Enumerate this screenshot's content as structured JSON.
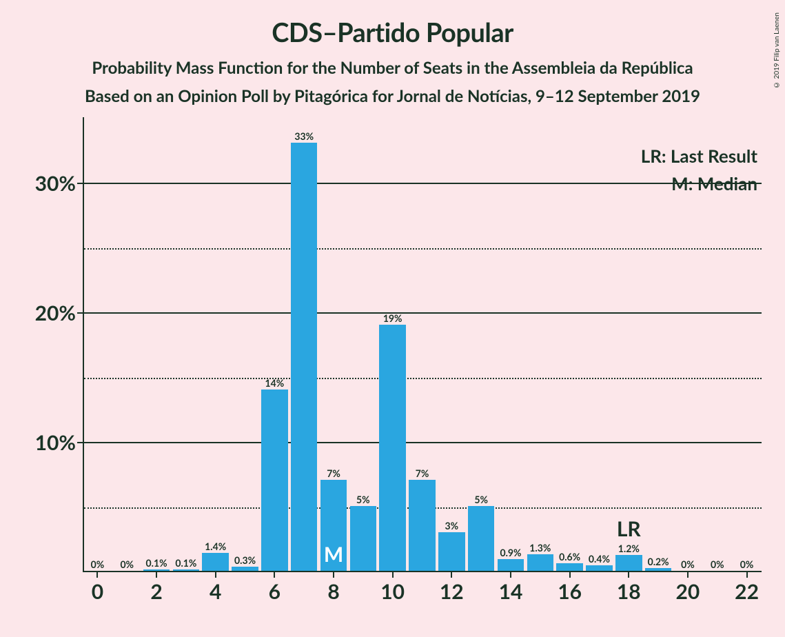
{
  "title": "CDS–Partido Popular",
  "subtitle": "Probability Mass Function for the Number of Seats in the Assembleia da República",
  "subtitle2": "Based on an Opinion Poll by Pitagórica for Jornal de Notícias, 9–12 September 2019",
  "copyright": "© 2019 Filip van Laenen",
  "legend": {
    "lr": "LR: Last Result",
    "m": "M: Median"
  },
  "chart": {
    "type": "bar",
    "background_color": "#fce7ea",
    "bar_color": "#2aa6e0",
    "axis_color": "#1a3326",
    "text_color": "#1a3326",
    "marker_m_color": "#ffffff",
    "bar_width_ratio": 0.9,
    "x_min": -0.5,
    "x_max": 22.5,
    "y_min": 0,
    "y_max": 33.5,
    "y_ticks_major": [
      0,
      10,
      20,
      30
    ],
    "y_ticks_minor": [
      5,
      15,
      25
    ],
    "y_tick_labels": [
      "10%",
      "20%",
      "30%"
    ],
    "y_tick_label_values": [
      10,
      20,
      30
    ],
    "x_ticks": [
      0,
      2,
      4,
      6,
      8,
      10,
      12,
      14,
      16,
      18,
      20,
      22
    ],
    "categories": [
      0,
      1,
      2,
      3,
      4,
      5,
      6,
      7,
      8,
      9,
      10,
      11,
      12,
      13,
      14,
      15,
      16,
      17,
      18,
      19,
      20,
      21,
      22
    ],
    "values": [
      0,
      0,
      0.1,
      0.1,
      1.4,
      0.3,
      14,
      33,
      7,
      5,
      19,
      7,
      3,
      5,
      0.9,
      1.3,
      0.6,
      0.4,
      1.2,
      0.2,
      0,
      0,
      0
    ],
    "bar_labels": [
      "0%",
      "0%",
      "0.1%",
      "0.1%",
      "1.4%",
      "0.3%",
      "14%",
      "33%",
      "7%",
      "5%",
      "19%",
      "7%",
      "3%",
      "5%",
      "0.9%",
      "1.3%",
      "0.6%",
      "0.4%",
      "1.2%",
      "0.2%",
      "0%",
      "0%",
      "0%"
    ],
    "median_x": 8,
    "median_label": "M",
    "last_result_x": 18,
    "last_result_label": "LR",
    "title_fontsize": 38,
    "subtitle_fontsize": 24,
    "axis_label_fontsize": 30,
    "bar_label_fontsize": 14,
    "legend_fontsize": 26
  }
}
